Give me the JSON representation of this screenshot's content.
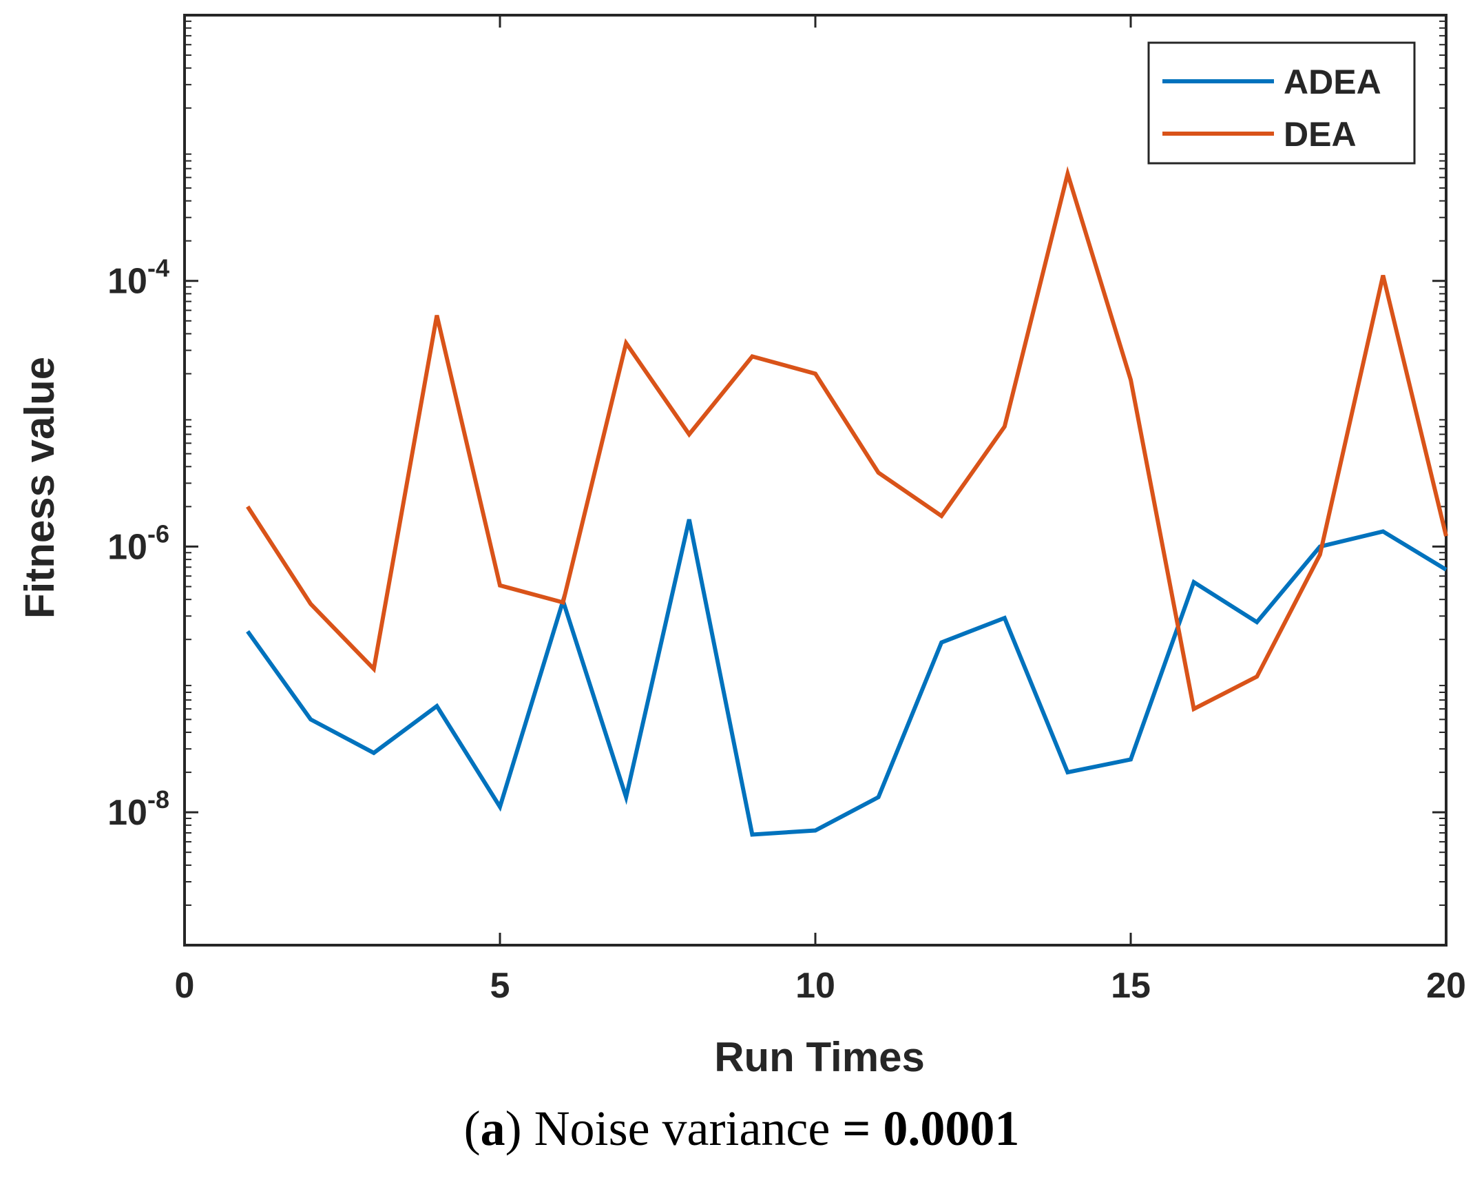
{
  "chart_data": {
    "type": "line",
    "yscale": "log",
    "xlabel": "Run Times",
    "ylabel": "Fitness value",
    "xlim": [
      0,
      20
    ],
    "ylim": [
      1e-09,
      0.01
    ],
    "xticks": [
      0,
      5,
      10,
      15,
      20
    ],
    "xtick_labels": [
      "0",
      "5",
      "10",
      "15",
      "20"
    ],
    "yticks": [
      1e-08,
      1e-06,
      0.0001
    ],
    "ytick_labels": [
      {
        "base": "10",
        "exp": "-8"
      },
      {
        "base": "10",
        "exp": "-6"
      },
      {
        "base": "10",
        "exp": "-4"
      }
    ],
    "legend_position": "top-right",
    "x": [
      1,
      2,
      3,
      4,
      5,
      6,
      7,
      8,
      9,
      10,
      11,
      12,
      13,
      14,
      15,
      16,
      17,
      18,
      19,
      20
    ],
    "series": [
      {
        "name": "ADEA",
        "color": "#0072BD",
        "values": [
          2.3e-07,
          5e-08,
          2.8e-08,
          6.3e-08,
          1.1e-08,
          3.9e-07,
          1.3e-08,
          1.6e-06,
          6.8e-09,
          7.3e-09,
          1.3e-08,
          1.9e-07,
          2.9e-07,
          2e-08,
          2.5e-08,
          5.4e-07,
          2.7e-07,
          1e-06,
          1.3e-06,
          6.7e-07
        ]
      },
      {
        "name": "DEA",
        "color": "#D95319",
        "values": [
          2e-06,
          3.7e-07,
          1.2e-07,
          5.5e-05,
          5.1e-07,
          3.8e-07,
          3.4e-05,
          7e-06,
          2.7e-05,
          2e-05,
          3.6e-06,
          1.7e-06,
          8e-06,
          0.00064,
          1.8e-05,
          6e-08,
          1.05e-07,
          8.7e-07,
          0.00011,
          1.2e-06
        ]
      }
    ]
  },
  "caption": {
    "letter": "a",
    "text": " Noise variance ",
    "value": "= 0.0001"
  }
}
